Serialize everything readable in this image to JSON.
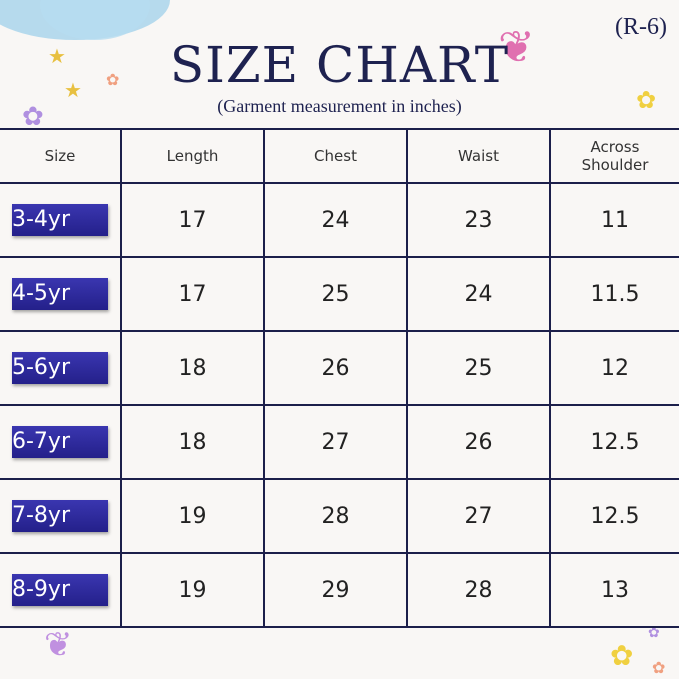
{
  "header": {
    "title": "SIZE CHART",
    "subtitle": "(Garment measurement in inches)",
    "code": "(R-6)"
  },
  "table": {
    "columns": [
      "Size",
      "Length",
      "Chest",
      "Waist",
      "Across Shoulder"
    ],
    "rows": [
      [
        "3-4yr",
        "17",
        "24",
        "23",
        "11"
      ],
      [
        "4-5yr",
        "17",
        "25",
        "24",
        "11.5"
      ],
      [
        "5-6yr",
        "18",
        "26",
        "25",
        "12"
      ],
      [
        "6-7yr",
        "18",
        "27",
        "26",
        "12.5"
      ],
      [
        "7-8yr",
        "19",
        "28",
        "27",
        "12.5"
      ],
      [
        "8-9yr",
        "19",
        "29",
        "28",
        "13"
      ]
    ]
  },
  "colors": {
    "accent": "#2a27a0",
    "lines": "#1c1f4a",
    "title": "#1e2250"
  },
  "icons": [
    "cloud",
    "star",
    "flower",
    "butterfly"
  ]
}
